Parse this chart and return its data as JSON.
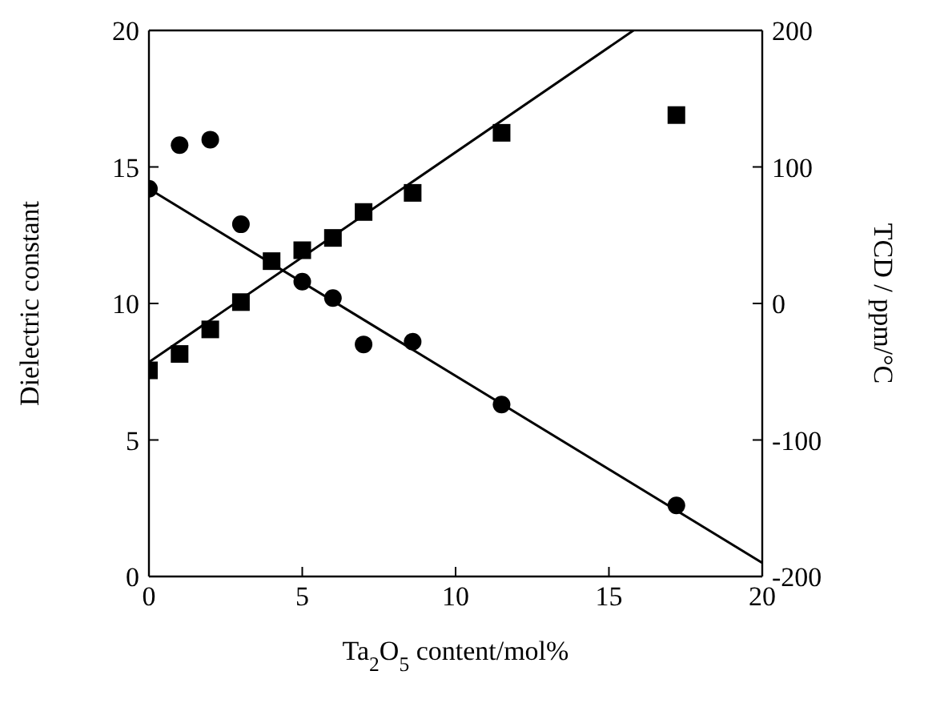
{
  "chart_data": {
    "type": "scatter",
    "xlabel": "Ta$_{2}$O$_{5}$ content/mol%",
    "ylabel": "Dielectric constant",
    "y2label": "TCD / ppm/°C",
    "xlim": [
      0,
      20
    ],
    "xticks": [
      0,
      5,
      10,
      15,
      20
    ],
    "ylim": [
      0,
      20
    ],
    "yticks": [
      0,
      5,
      10,
      15,
      20
    ],
    "y2lim": [
      -200,
      200
    ],
    "y2ticks": [
      -200,
      -100,
      0,
      100,
      200
    ],
    "series": [
      {
        "marker": "circle",
        "color": "#000000",
        "x": [
          0,
          1,
          2,
          3,
          5,
          6,
          7,
          8.6,
          11.5,
          17.2
        ],
        "values": [
          14.2,
          15.8,
          16,
          12.9,
          10.8,
          10.2,
          8.5,
          8.6,
          6.3,
          2.6
        ]
      },
      {
        "marker": "square",
        "axis": "y2",
        "color": "#000000",
        "x": [
          0,
          1,
          2,
          3,
          4,
          5,
          6,
          7,
          8.6,
          11.5,
          17.2
        ],
        "values": [
          -49,
          -37,
          -19,
          1,
          31,
          39,
          48,
          67,
          81,
          125,
          138
        ]
      },
      {
        "type": "line",
        "marker": "none",
        "color": "#000000",
        "x": [
          0,
          20
        ],
        "values": [
          14.2,
          0.5
        ]
      },
      {
        "type": "line",
        "marker": "none",
        "axis": "y2",
        "color": "#000000",
        "x": [
          0,
          15.8
        ],
        "values": [
          -43,
          200
        ]
      }
    ]
  }
}
